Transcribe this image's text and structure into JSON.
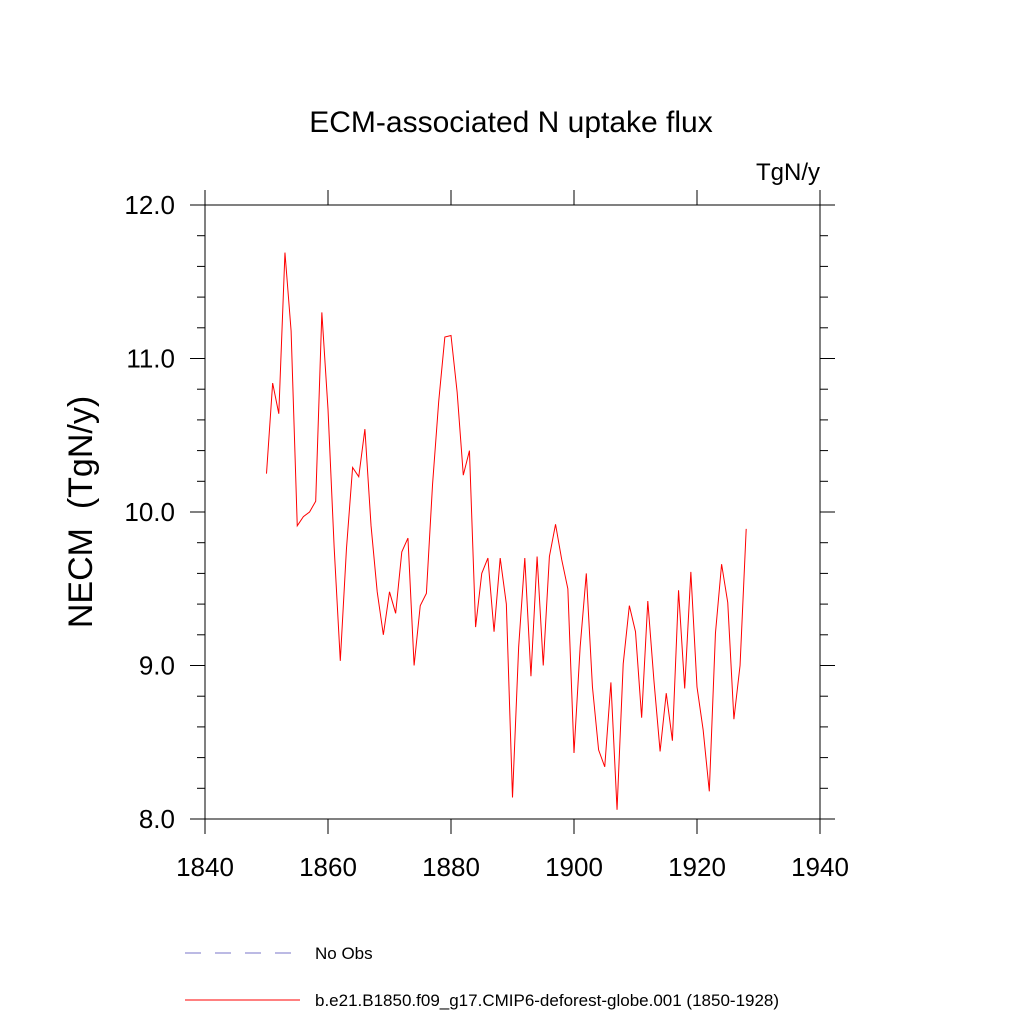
{
  "chart_data": {
    "type": "line",
    "title": "ECM-associated N uptake flux",
    "units": "TgN/y",
    "ylabel": "NECM  (TgN/y)",
    "xlabel": "",
    "xlim": [
      1840,
      1940
    ],
    "ylim": [
      8.0,
      12.0
    ],
    "x_ticks": [
      "1840",
      "1860",
      "1880",
      "1900",
      "1920",
      "1940"
    ],
    "y_ticks": [
      "8.0",
      "9.0",
      "10.0",
      "11.0",
      "12.0"
    ],
    "colors": {
      "model": "#ff0000",
      "obs": "#7a76c8"
    },
    "legend": [
      {
        "label": "No Obs",
        "style": "dashed"
      },
      {
        "label": "b.e21.B1850.f09_g17.CMIP6-deforest-globe.001 (1850-1928)",
        "style": "solid"
      }
    ],
    "series": [
      {
        "name": "b.e21.B1850.f09_g17.CMIP6-deforest-globe.001 (1850-1928)",
        "x_start": 1850,
        "x_step": 1,
        "values": [
          10.25,
          10.84,
          10.64,
          11.69,
          11.18,
          9.91,
          9.97,
          10.0,
          10.07,
          11.3,
          10.67,
          9.77,
          9.03,
          9.76,
          10.29,
          10.23,
          10.54,
          9.91,
          9.48,
          9.2,
          9.48,
          9.34,
          9.74,
          9.83,
          9.0,
          9.39,
          9.47,
          10.18,
          10.72,
          11.14,
          11.15,
          10.78,
          10.24,
          10.4,
          9.25,
          9.6,
          9.7,
          9.22,
          9.7,
          9.4,
          8.14,
          9.12,
          9.7,
          8.93,
          9.71,
          9.0,
          9.71,
          9.92,
          9.69,
          9.5,
          8.43,
          9.12,
          9.6,
          8.86,
          8.45,
          8.34,
          8.89,
          8.06,
          9.01,
          9.39,
          9.22,
          8.66,
          9.42,
          8.9,
          8.44,
          8.82,
          8.51,
          9.49,
          8.85,
          9.61,
          8.86,
          8.58,
          8.18,
          9.21,
          9.66,
          9.41,
          8.65,
          9.0,
          9.89
        ]
      }
    ]
  }
}
